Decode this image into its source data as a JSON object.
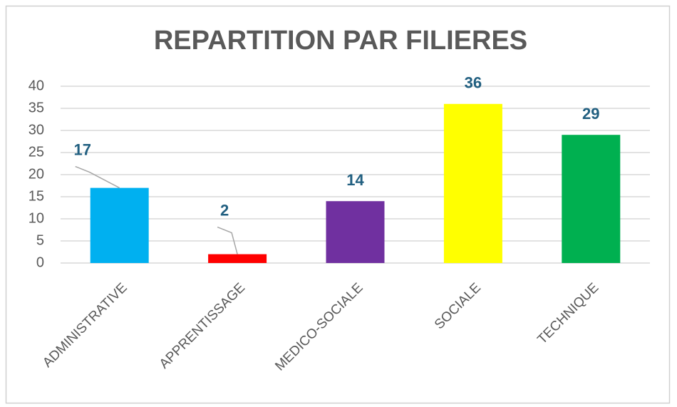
{
  "chart_data": {
    "type": "bar",
    "title": "REPARTITION PAR FILIERES",
    "categories": [
      "ADMINISTRATIVE",
      "APPRENTISSAGE",
      "MEDICO-SOCIALE",
      "SOCIALE",
      "TECHNIQUE"
    ],
    "values": [
      17,
      2,
      14,
      36,
      29
    ],
    "colors": [
      "#00b0f0",
      "#ff0000",
      "#7030a0",
      "#ffff00",
      "#00b050"
    ],
    "ylim": [
      0,
      40
    ],
    "yticks": [
      0,
      5,
      10,
      15,
      20,
      25,
      30,
      35,
      40
    ],
    "grid": true
  }
}
